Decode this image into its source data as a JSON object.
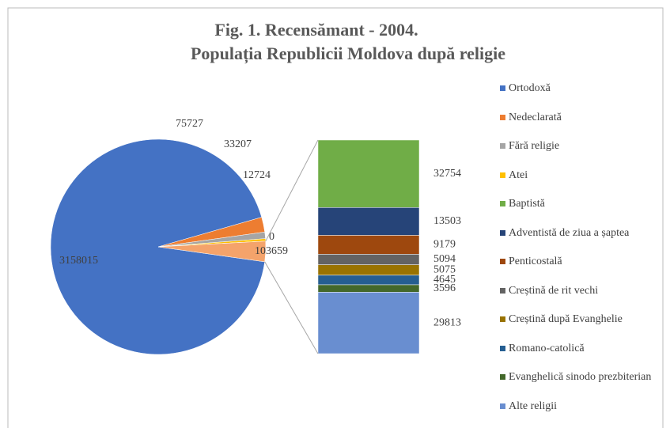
{
  "chart_data": {
    "type": "bar-of-pie",
    "title": "Fig. 1. Recensămant - 2004.",
    "subtitle": "Populația Republicii Moldova după religie",
    "pie": {
      "categories": [
        "Ortodoxă",
        "Nedeclarată",
        "Fără religie",
        "Atei",
        null,
        null
      ],
      "values": [
        3158015,
        75727,
        33207,
        12724,
        0,
        103659
      ],
      "colors": [
        "#4472c4",
        "#ed7d31",
        "#a5a5a5",
        "#ffc000",
        "#ffc000",
        "#f4a36b"
      ]
    },
    "bar": {
      "categories": [
        "Baptistă",
        "Adventistă de ziua a șaptea",
        "Penticostală",
        "Creștină de rit vechi",
        "Creștină după Evanghelie",
        "Romano-catolică",
        "Evanghelică sinodo prezbiterian",
        "Alte religii"
      ],
      "values": [
        32754,
        13503,
        9179,
        5094,
        5075,
        4645,
        3596,
        29813
      ],
      "colors": [
        "#70ad47",
        "#264478",
        "#9e480e",
        "#636363",
        "#997300",
        "#255e91",
        "#43682b",
        "#698ed0"
      ]
    },
    "legend": "right"
  }
}
